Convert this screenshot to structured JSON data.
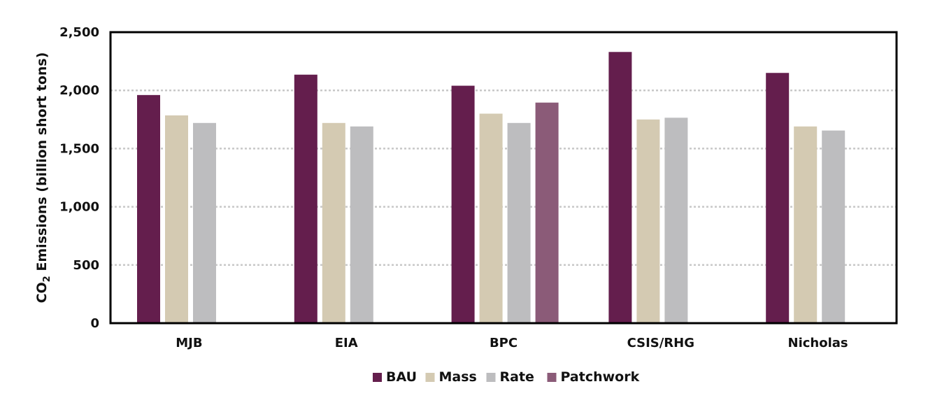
{
  "chart_data": {
    "type": "bar",
    "title": "",
    "xlabel": "",
    "ylabel": {
      "prefix": "CO",
      "subscript": "2",
      "suffix": " Emissions (billion short tons)"
    },
    "ylim": [
      0,
      2500
    ],
    "yticks": [
      0,
      500,
      1000,
      1500,
      2000,
      2500
    ],
    "ytick_labels": [
      "0",
      "500",
      "1,000",
      "1,500",
      "2,000",
      "2,500"
    ],
    "grid": true,
    "legend_position": "bottom",
    "categories": [
      "MJB",
      "EIA",
      "BPC",
      "CSIS/RHG",
      "Nicholas"
    ],
    "series": [
      {
        "name": "BAU",
        "color": "#641e4d",
        "values": [
          1960,
          2135,
          2040,
          2330,
          2150
        ]
      },
      {
        "name": "Mass",
        "color": "#d4cab2",
        "values": [
          1785,
          1720,
          1800,
          1750,
          1690
        ]
      },
      {
        "name": "Rate",
        "color": "#bdbdbf",
        "values": [
          1720,
          1690,
          1720,
          1765,
          1655
        ]
      },
      {
        "name": "Patchwork",
        "color": "#8b5b78",
        "values": [
          null,
          null,
          1895,
          null,
          null
        ]
      }
    ]
  }
}
